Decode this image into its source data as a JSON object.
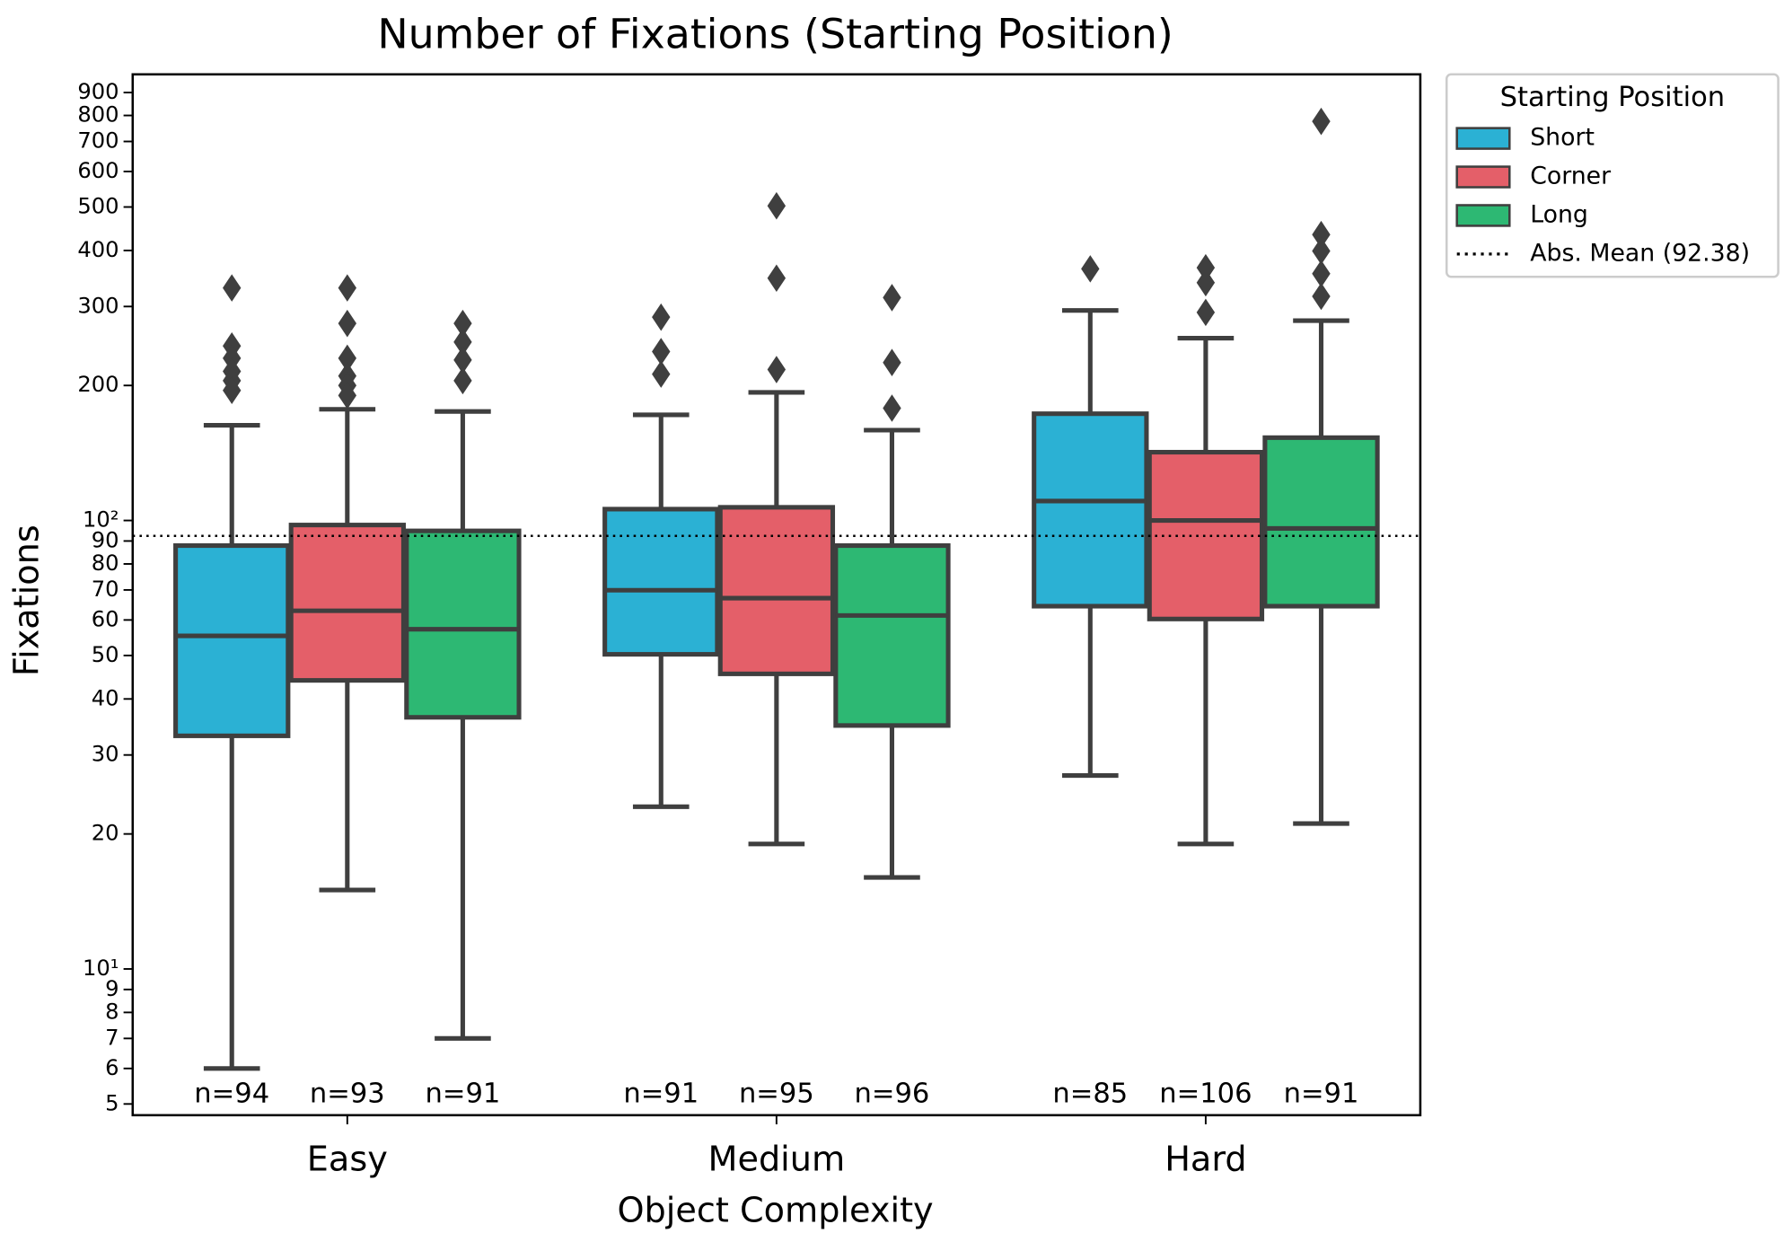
{
  "chart_data": {
    "type": "box",
    "title": "Number of Fixations (Starting Position)",
    "x_label": "Object Complexity",
    "y_label": "Fixations",
    "log_scale": true,
    "categories": [
      "Easy",
      "Medium",
      "Hard"
    ],
    "ylim": [
      4.72,
      988
    ],
    "yticks": [
      5,
      6,
      7,
      8,
      9,
      {
        "value": 10,
        "label": "10¹"
      },
      20,
      30,
      40,
      50,
      60,
      70,
      80,
      90,
      {
        "value": 100,
        "label": "10²"
      },
      200,
      300,
      400,
      500,
      600,
      700,
      800,
      900
    ],
    "legend_title": "Starting Position",
    "legend_position": "outside-upper-right",
    "edge_color": "#3f3f3f",
    "series": [
      {
        "name": "Short",
        "color": "#2bb1d4",
        "boxes": [
          {
            "whislo": 6.0,
            "q1": 33.1,
            "med": 55.3,
            "q3": 87.9,
            "whishi": 163,
            "fliers": [
              330,
              245,
              230,
              215,
              205,
              195
            ]
          },
          {
            "whislo": 23.0,
            "q1": 50.3,
            "med": 69.9,
            "q3": 106,
            "whishi": 172,
            "fliers": [
              284,
              238,
              212
            ]
          },
          {
            "whislo": 27.0,
            "q1": 64.4,
            "med": 110.5,
            "q3": 173,
            "whishi": 294,
            "fliers": [
              364
            ]
          }
        ],
        "n_labels": [
          "n=94",
          "n=91",
          "n=85"
        ]
      },
      {
        "name": "Corner",
        "color": "#e45f69",
        "boxes": [
          {
            "whislo": 15.0,
            "q1": 44.0,
            "med": 62.9,
            "q3": 97.7,
            "whishi": 177,
            "fliers": [
              330,
              275,
              230,
              210,
              200,
              190
            ]
          },
          {
            "whislo": 19.0,
            "q1": 45.5,
            "med": 67.1,
            "q3": 107,
            "whishi": 193,
            "fliers": [
              503,
              347,
              217
            ]
          },
          {
            "whislo": 19.0,
            "q1": 60.3,
            "med": 100,
            "q3": 142,
            "whishi": 255,
            "fliers": [
              366,
              339,
              291
            ]
          }
        ],
        "n_labels": [
          "n=93",
          "n=95",
          "n=106"
        ]
      },
      {
        "name": "Long",
        "color": "#2db873",
        "boxes": [
          {
            "whislo": 7.0,
            "q1": 36.4,
            "med": 57.2,
            "q3": 94.8,
            "whishi": 175,
            "fliers": [
              275,
              250,
              228,
              205
            ]
          },
          {
            "whislo": 16.0,
            "q1": 34.9,
            "med": 61.4,
            "q3": 87.9,
            "whishi": 159,
            "fliers": [
              314,
              225,
              178
            ]
          },
          {
            "whislo": 21.1,
            "q1": 64.4,
            "med": 96,
            "q3": 153,
            "whishi": 279,
            "fliers": [
              776,
              434,
              399,
              355,
              316
            ]
          }
        ],
        "n_labels": [
          "n=91",
          "n=96",
          "n=91"
        ]
      }
    ],
    "reference_line": {
      "label": "Abs. Mean (92.38)",
      "value": 92.38,
      "style": "dotted",
      "color": "#000000"
    }
  }
}
